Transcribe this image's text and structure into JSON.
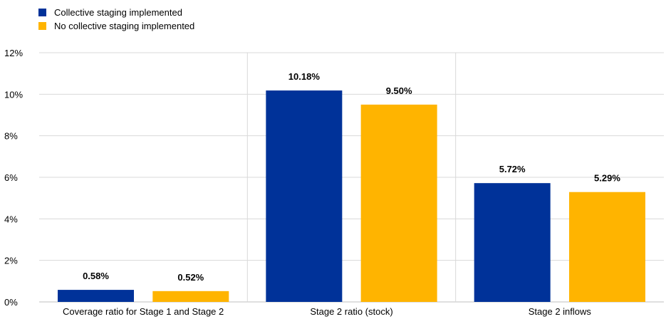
{
  "legend": {
    "items": [
      {
        "label": "Collective staging implemented",
        "color": "#003299"
      },
      {
        "label": "No collective staging implemented",
        "color": "#FFB400"
      }
    ]
  },
  "chart_data": {
    "type": "bar",
    "title": "",
    "xlabel": "",
    "ylabel": "",
    "categories": [
      "Coverage ratio for Stage 1 and Stage 2",
      "Stage 2 ratio (stock)",
      "Stage 2 inflows"
    ],
    "series": [
      {
        "name": "Collective staging implemented",
        "color": "#003299",
        "values": [
          0.58,
          10.18,
          5.72
        ],
        "labels": [
          "0.58%",
          "10.18%",
          "5.72%"
        ]
      },
      {
        "name": "No collective staging implemented",
        "color": "#FFB400",
        "values": [
          0.52,
          9.5,
          5.29
        ],
        "labels": [
          "0.52%",
          "9.50%",
          "5.29%"
        ]
      }
    ],
    "ylim": [
      0,
      12
    ],
    "yticks": [
      0,
      2,
      4,
      6,
      8,
      10,
      12
    ],
    "ytick_labels": [
      "0%",
      "2%",
      "4%",
      "6%",
      "8%",
      "10%",
      "12%"
    ],
    "grid": true,
    "legend_position": "top-left"
  }
}
